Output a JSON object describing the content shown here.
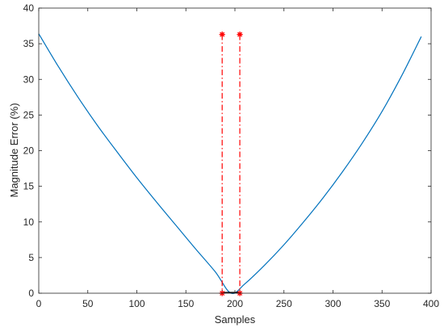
{
  "chart_data": {
    "type": "line",
    "title": "",
    "xlabel": "Samples",
    "ylabel": "Magnitude Error (%)",
    "xlim": [
      0,
      400
    ],
    "ylim": [
      0,
      40
    ],
    "xticks": [
      0,
      50,
      100,
      150,
      200,
      250,
      300,
      350,
      400
    ],
    "yticks": [
      0,
      5,
      10,
      15,
      20,
      25,
      30,
      35,
      40
    ],
    "grid": false,
    "legend": "none",
    "curve": {
      "color": "#0072BD",
      "x": [
        0,
        20,
        40,
        60,
        80,
        100,
        120,
        140,
        160,
        180,
        196,
        210,
        230,
        250,
        270,
        290,
        310,
        330,
        350,
        370,
        390
      ],
      "y": [
        36.4,
        31.8,
        27.5,
        23.5,
        19.8,
        16.2,
        12.8,
        9.5,
        6.2,
        3.0,
        0.0,
        1.3,
        3.9,
        6.8,
        10.0,
        13.4,
        17.1,
        21.1,
        25.5,
        30.5,
        36.0
      ]
    },
    "markers": {
      "color": "#FF0000",
      "points": [
        {
          "x": 187,
          "y_top": 36.3,
          "y_bottom": 0
        },
        {
          "x": 205,
          "y_top": 36.3,
          "y_bottom": 0
        }
      ]
    },
    "bracket": {
      "x1": 187,
      "x2": 205,
      "y": 0,
      "color": "#000000"
    }
  }
}
